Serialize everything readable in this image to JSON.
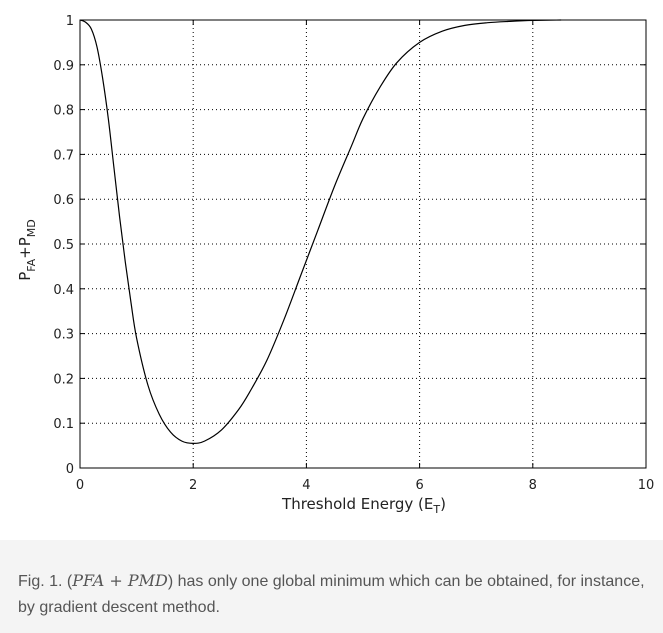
{
  "chart_data": {
    "type": "line",
    "xlabel": "Threshold Energy (E",
    "xlabel_sub": "T",
    "xlabel_close": ")",
    "ylabel_parts": {
      "p1": "P",
      "s1": "FA",
      "plus": "+P",
      "s2": "MD"
    },
    "xlim": [
      0,
      10
    ],
    "ylim": [
      0,
      1
    ],
    "xticks": [
      0,
      2,
      4,
      6,
      8,
      10
    ],
    "xtick_labels": [
      "0",
      "2",
      "4",
      "6",
      "8",
      "10"
    ],
    "yticks": [
      0,
      0.1,
      0.2,
      0.3,
      0.4,
      0.5,
      0.6,
      0.7,
      0.8,
      0.9,
      1
    ],
    "ytick_labels": [
      "0",
      "0.1",
      "0.2",
      "0.3",
      "0.4",
      "0.5",
      "0.6",
      "0.7",
      "0.8",
      "0.9",
      "1"
    ],
    "grid": true,
    "series": [
      {
        "x": [
          0,
          0.1,
          0.2,
          0.3,
          0.4,
          0.5,
          0.6,
          0.7,
          0.8,
          0.9,
          1.0,
          1.2,
          1.4,
          1.6,
          1.8,
          2.0,
          2.2,
          2.5,
          2.8,
          3.0,
          3.3,
          3.6,
          3.9,
          4.2,
          4.5,
          4.8,
          5.0,
          5.3,
          5.6,
          6.0,
          6.4,
          6.8,
          7.2,
          7.6,
          8.0,
          8.5
        ],
        "y": [
          1.0,
          0.995,
          0.98,
          0.94,
          0.87,
          0.78,
          0.67,
          0.56,
          0.46,
          0.37,
          0.29,
          0.185,
          0.12,
          0.08,
          0.06,
          0.055,
          0.06,
          0.085,
          0.13,
          0.17,
          0.24,
          0.33,
          0.43,
          0.53,
          0.63,
          0.72,
          0.78,
          0.85,
          0.905,
          0.95,
          0.975,
          0.988,
          0.994,
          0.997,
          0.999,
          1.0
        ]
      }
    ]
  },
  "caption": {
    "prefix": "Fig. 1. (",
    "math": "PFA + PMD",
    "rest": ") has only one global minimum which can be obtained, for instance, by gradient descent method."
  }
}
